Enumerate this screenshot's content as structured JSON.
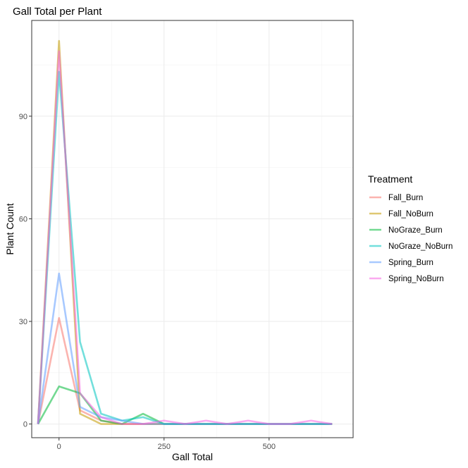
{
  "chart_data": {
    "type": "line",
    "title": "Gall Total per Plant",
    "xlabel": "Gall Total",
    "ylabel": "Plant Count",
    "xlim": [
      -65,
      700
    ],
    "ylim": [
      -4,
      118
    ],
    "xticks": [
      0,
      250,
      500
    ],
    "yticks": [
      0,
      30,
      60,
      90
    ],
    "grid": true,
    "legend_title": "Treatment",
    "legend_position": "right",
    "x": [
      -50,
      0,
      50,
      100,
      150,
      200,
      250,
      300,
      350,
      400,
      450,
      500,
      550,
      600,
      650
    ],
    "series": [
      {
        "name": "Fall_Burn",
        "color": "#F8766D",
        "values": [
          0,
          31,
          4,
          1,
          0,
          0,
          0,
          0,
          0,
          0,
          0,
          0,
          0,
          0,
          0
        ]
      },
      {
        "name": "Fall_NoBurn",
        "color": "#C49A00",
        "values": [
          0,
          112,
          3,
          0,
          0,
          0,
          0,
          0,
          0,
          0,
          0,
          0,
          0,
          0,
          0
        ]
      },
      {
        "name": "NoGraze_Burn",
        "color": "#00BA38",
        "values": [
          0,
          11,
          9,
          1,
          0,
          3,
          0,
          0,
          0,
          0,
          0,
          0,
          0,
          0,
          0
        ]
      },
      {
        "name": "NoGraze_NoBurn",
        "color": "#00C5C0",
        "values": [
          0,
          103,
          24,
          3,
          1,
          2,
          0,
          0,
          0,
          0,
          0,
          0,
          0,
          0,
          0
        ]
      },
      {
        "name": "Spring_Burn",
        "color": "#619CFF",
        "values": [
          0,
          44,
          5,
          2,
          1,
          0,
          0,
          0,
          0,
          0,
          0,
          0,
          0,
          0,
          0
        ]
      },
      {
        "name": "Spring_NoBurn",
        "color": "#F564E3",
        "values": [
          0,
          109,
          9,
          2,
          0,
          0,
          1,
          0,
          1,
          0,
          1,
          0,
          0,
          1,
          0
        ]
      }
    ]
  }
}
